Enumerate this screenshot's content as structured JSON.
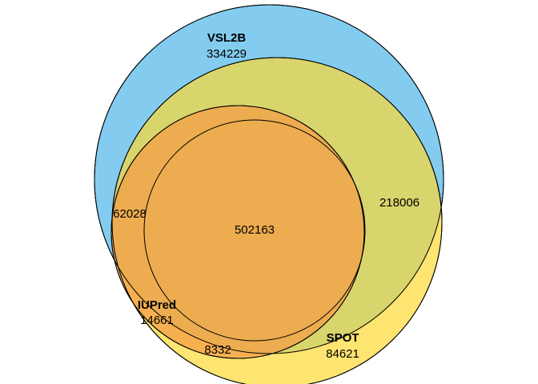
{
  "sets": [
    {
      "id": "vsl2b",
      "name": "VSL2B",
      "color": "#4FB6EA"
    },
    {
      "id": "spot",
      "name": "SPOT",
      "color": "#FDD835"
    },
    {
      "id": "iupred",
      "name": "IUPred",
      "color": "#F39A43"
    }
  ],
  "regions": {
    "vsl2b_only": "334229",
    "vsl2b_iupred": "62028",
    "all_three": "502163",
    "vsl2b_spot": "218006",
    "iupred_only": "14661",
    "iupred_spot": "8332",
    "spot_only": "84621"
  }
}
